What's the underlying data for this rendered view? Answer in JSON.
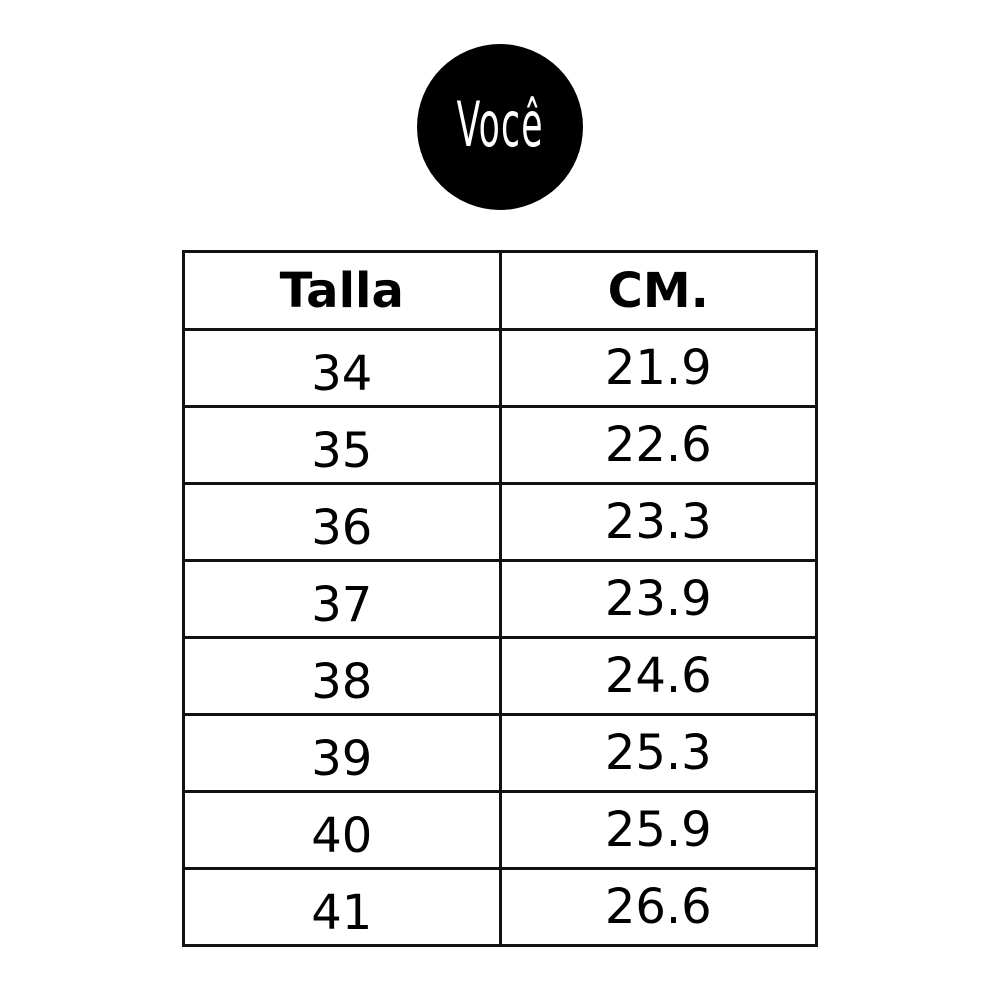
{
  "logo": {
    "text": "Você"
  },
  "table": {
    "headers": [
      "Talla",
      "CM."
    ],
    "rows": [
      [
        "34",
        "21.9"
      ],
      [
        "35",
        "22.6"
      ],
      [
        "36",
        "23.3"
      ],
      [
        "37",
        "23.9"
      ],
      [
        "38",
        "24.6"
      ],
      [
        "39",
        "25.3"
      ],
      [
        "40",
        "25.9"
      ],
      [
        "41",
        "26.6"
      ]
    ]
  }
}
